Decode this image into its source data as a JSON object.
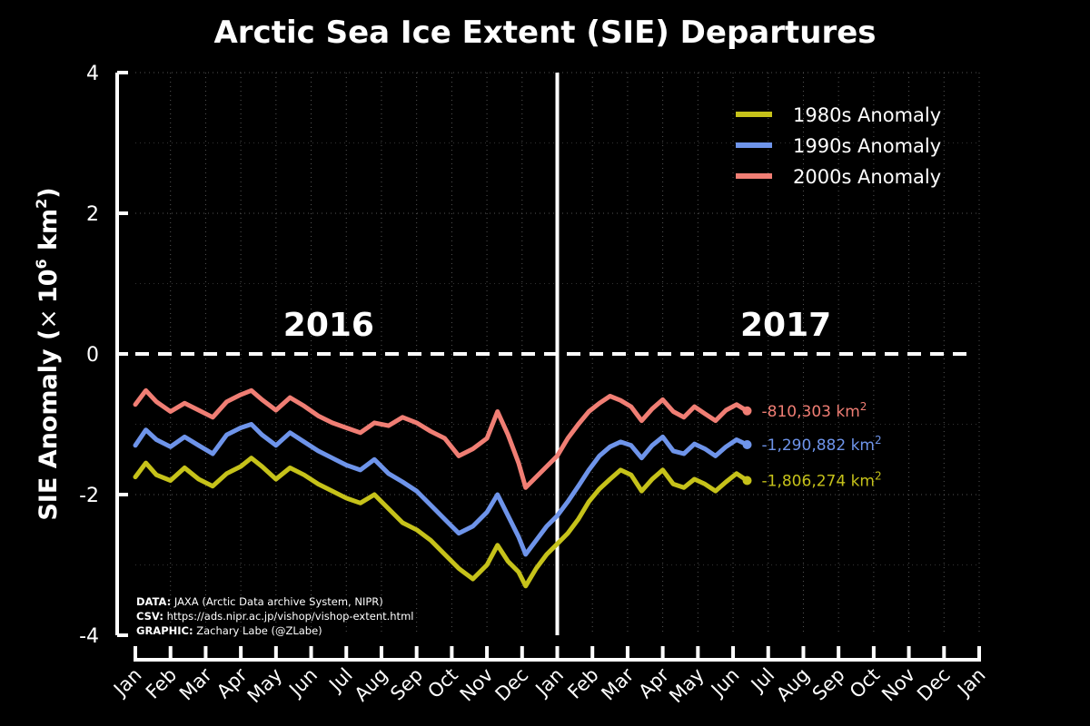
{
  "colors": {
    "background": "#000000",
    "axis": "#ffffff",
    "grid": "#555555",
    "s1980": "#c6c21a",
    "s1990": "#6e94ea",
    "s2000": "#f07e74"
  },
  "chart_data": {
    "type": "line",
    "title": "Arctic Sea Ice Extent (SIE) Departures",
    "ylabel_main": "SIE Anomaly (",
    "ylabel_times": "×",
    "ylabel_ten": "10",
    "ylabel_exp6": "6",
    "ylabel_km": " km",
    "ylabel_exp2": "2",
    "ylabel_close": ")",
    "ylim": [
      -4,
      4
    ],
    "yticks": [
      4,
      2,
      0,
      -2,
      -4
    ],
    "ytick_labels": [
      "4",
      "2",
      "0",
      "-2",
      "-4"
    ],
    "xlim_months": [
      0,
      24
    ],
    "x_unit": "months since Jan 2016",
    "month_labels": [
      "Jan",
      "Feb",
      "Mar",
      "Apr",
      "May",
      "Jun",
      "Jul",
      "Aug",
      "Sep",
      "Oct",
      "Nov",
      "Dec",
      "Jan",
      "Feb",
      "Mar",
      "Apr",
      "May",
      "Jun",
      "Jul",
      "Aug",
      "Sep",
      "Oct",
      "Nov",
      "Dec",
      "Jan"
    ],
    "year_labels": [
      {
        "text": "2016",
        "month": 5.5
      },
      {
        "text": "2017",
        "month": 18.5
      }
    ],
    "year_divider_month": 12,
    "zero_line": true,
    "grid": true,
    "legend_position": "top-right",
    "series": [
      {
        "name": "1980s Anomaly",
        "color_key": "s1980",
        "end_label": "-1,806,274 km",
        "end_label_sup": "2",
        "points": [
          [
            0,
            -1.75
          ],
          [
            0.3,
            -1.55
          ],
          [
            0.6,
            -1.72
          ],
          [
            1,
            -1.8
          ],
          [
            1.4,
            -1.62
          ],
          [
            1.8,
            -1.78
          ],
          [
            2.2,
            -1.88
          ],
          [
            2.6,
            -1.7
          ],
          [
            3,
            -1.6
          ],
          [
            3.3,
            -1.48
          ],
          [
            3.6,
            -1.6
          ],
          [
            4,
            -1.78
          ],
          [
            4.4,
            -1.62
          ],
          [
            4.8,
            -1.72
          ],
          [
            5.2,
            -1.85
          ],
          [
            5.6,
            -1.95
          ],
          [
            6,
            -2.05
          ],
          [
            6.4,
            -2.12
          ],
          [
            6.8,
            -2.0
          ],
          [
            7.2,
            -2.2
          ],
          [
            7.6,
            -2.4
          ],
          [
            8,
            -2.5
          ],
          [
            8.4,
            -2.65
          ],
          [
            8.8,
            -2.85
          ],
          [
            9.2,
            -3.05
          ],
          [
            9.6,
            -3.2
          ],
          [
            10,
            -3.0
          ],
          [
            10.3,
            -2.72
          ],
          [
            10.6,
            -2.95
          ],
          [
            10.9,
            -3.1
          ],
          [
            11.1,
            -3.3
          ],
          [
            11.4,
            -3.05
          ],
          [
            11.7,
            -2.85
          ],
          [
            12,
            -2.7
          ],
          [
            12.3,
            -2.55
          ],
          [
            12.6,
            -2.35
          ],
          [
            12.9,
            -2.1
          ],
          [
            13.2,
            -1.92
          ],
          [
            13.5,
            -1.78
          ],
          [
            13.8,
            -1.65
          ],
          [
            14.1,
            -1.72
          ],
          [
            14.4,
            -1.95
          ],
          [
            14.7,
            -1.78
          ],
          [
            15,
            -1.65
          ],
          [
            15.3,
            -1.85
          ],
          [
            15.6,
            -1.9
          ],
          [
            15.9,
            -1.78
          ],
          [
            16.2,
            -1.85
          ],
          [
            16.5,
            -1.95
          ],
          [
            16.8,
            -1.82
          ],
          [
            17.1,
            -1.7
          ],
          [
            17.4,
            -1.8
          ]
        ]
      },
      {
        "name": "1990s Anomaly",
        "color_key": "s1990",
        "end_label": "-1,290,882 km",
        "end_label_sup": "2",
        "points": [
          [
            0,
            -1.3
          ],
          [
            0.3,
            -1.08
          ],
          [
            0.6,
            -1.22
          ],
          [
            1,
            -1.32
          ],
          [
            1.4,
            -1.18
          ],
          [
            1.8,
            -1.3
          ],
          [
            2.2,
            -1.42
          ],
          [
            2.6,
            -1.15
          ],
          [
            3,
            -1.05
          ],
          [
            3.3,
            -1.0
          ],
          [
            3.6,
            -1.15
          ],
          [
            4,
            -1.3
          ],
          [
            4.4,
            -1.12
          ],
          [
            4.8,
            -1.25
          ],
          [
            5.2,
            -1.38
          ],
          [
            5.6,
            -1.48
          ],
          [
            6,
            -1.58
          ],
          [
            6.4,
            -1.65
          ],
          [
            6.8,
            -1.5
          ],
          [
            7.2,
            -1.7
          ],
          [
            7.6,
            -1.82
          ],
          [
            8,
            -1.95
          ],
          [
            8.4,
            -2.15
          ],
          [
            8.8,
            -2.35
          ],
          [
            9.2,
            -2.55
          ],
          [
            9.6,
            -2.45
          ],
          [
            10,
            -2.25
          ],
          [
            10.3,
            -2.0
          ],
          [
            10.6,
            -2.3
          ],
          [
            10.9,
            -2.6
          ],
          [
            11.1,
            -2.85
          ],
          [
            11.4,
            -2.65
          ],
          [
            11.7,
            -2.45
          ],
          [
            12,
            -2.3
          ],
          [
            12.3,
            -2.1
          ],
          [
            12.6,
            -1.88
          ],
          [
            12.9,
            -1.65
          ],
          [
            13.2,
            -1.45
          ],
          [
            13.5,
            -1.32
          ],
          [
            13.8,
            -1.25
          ],
          [
            14.1,
            -1.3
          ],
          [
            14.4,
            -1.48
          ],
          [
            14.7,
            -1.3
          ],
          [
            15,
            -1.18
          ],
          [
            15.3,
            -1.38
          ],
          [
            15.6,
            -1.42
          ],
          [
            15.9,
            -1.28
          ],
          [
            16.2,
            -1.35
          ],
          [
            16.5,
            -1.45
          ],
          [
            16.8,
            -1.32
          ],
          [
            17.1,
            -1.22
          ],
          [
            17.4,
            -1.29
          ]
        ]
      },
      {
        "name": "2000s Anomaly",
        "color_key": "s2000",
        "end_label": "-810,303 km",
        "end_label_sup": "2",
        "points": [
          [
            0,
            -0.72
          ],
          [
            0.3,
            -0.52
          ],
          [
            0.6,
            -0.68
          ],
          [
            1,
            -0.82
          ],
          [
            1.4,
            -0.7
          ],
          [
            1.8,
            -0.8
          ],
          [
            2.2,
            -0.9
          ],
          [
            2.6,
            -0.68
          ],
          [
            3,
            -0.58
          ],
          [
            3.3,
            -0.52
          ],
          [
            3.6,
            -0.65
          ],
          [
            4,
            -0.8
          ],
          [
            4.4,
            -0.62
          ],
          [
            4.8,
            -0.74
          ],
          [
            5.2,
            -0.88
          ],
          [
            5.6,
            -0.98
          ],
          [
            6,
            -1.05
          ],
          [
            6.4,
            -1.12
          ],
          [
            6.8,
            -0.98
          ],
          [
            7.2,
            -1.02
          ],
          [
            7.6,
            -0.9
          ],
          [
            8,
            -0.98
          ],
          [
            8.4,
            -1.1
          ],
          [
            8.8,
            -1.2
          ],
          [
            9.2,
            -1.45
          ],
          [
            9.6,
            -1.35
          ],
          [
            10,
            -1.2
          ],
          [
            10.3,
            -0.82
          ],
          [
            10.6,
            -1.15
          ],
          [
            10.9,
            -1.55
          ],
          [
            11.1,
            -1.9
          ],
          [
            11.4,
            -1.75
          ],
          [
            11.7,
            -1.6
          ],
          [
            12,
            -1.45
          ],
          [
            12.3,
            -1.2
          ],
          [
            12.6,
            -1.0
          ],
          [
            12.9,
            -0.82
          ],
          [
            13.2,
            -0.7
          ],
          [
            13.5,
            -0.6
          ],
          [
            13.8,
            -0.66
          ],
          [
            14.1,
            -0.75
          ],
          [
            14.4,
            -0.95
          ],
          [
            14.7,
            -0.78
          ],
          [
            15,
            -0.65
          ],
          [
            15.3,
            -0.82
          ],
          [
            15.6,
            -0.9
          ],
          [
            15.9,
            -0.75
          ],
          [
            16.2,
            -0.85
          ],
          [
            16.5,
            -0.95
          ],
          [
            16.8,
            -0.8
          ],
          [
            17.1,
            -0.72
          ],
          [
            17.4,
            -0.81
          ]
        ]
      }
    ]
  },
  "credits": {
    "data_label": "DATA:",
    "data_text": " JAXA (Arctic Data archive System, NIPR)",
    "csv_label": "CSV:",
    "csv_text": " https://ads.nipr.ac.jp/vishop/vishop-extent.html",
    "graphic_label": "GRAPHIC:",
    "graphic_text": " Zachary Labe (@ZLabe)"
  }
}
